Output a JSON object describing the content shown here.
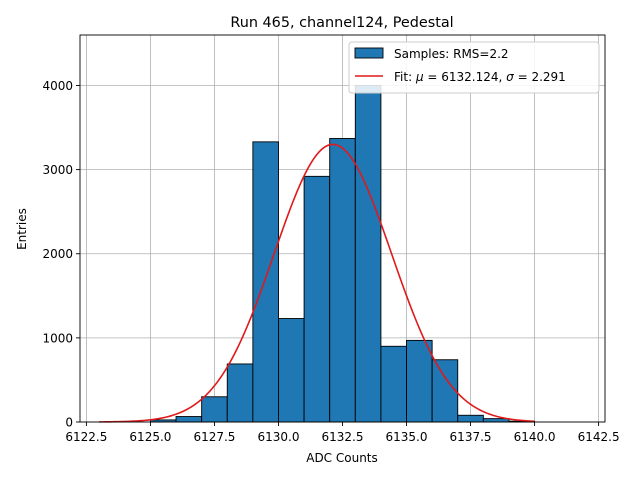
{
  "chart_data": {
    "type": "bar",
    "title": "Run 465, channel124, Pedestal",
    "xlabel": "ADC Counts",
    "ylabel": "Entries",
    "xlim": [
      6122.25,
      6142.75
    ],
    "ylim": [
      0,
      4600
    ],
    "grid": true,
    "legend_position": "top-right",
    "x_ticks": [
      6122.5,
      6125.0,
      6127.5,
      6130.0,
      6132.5,
      6135.0,
      6137.5,
      6140.0,
      6142.5
    ],
    "x_tick_labels": [
      "6122.5",
      "6125.0",
      "6127.5",
      "6130.0",
      "6132.5",
      "6135.0",
      "6137.5",
      "6140.0",
      "6142.5"
    ],
    "y_ticks": [
      0,
      1000,
      2000,
      3000,
      4000
    ],
    "y_tick_labels": [
      "0",
      "1000",
      "2000",
      "3000",
      "4000"
    ],
    "bins": {
      "edges": [
        6125,
        6126,
        6127,
        6128,
        6129,
        6130,
        6131,
        6132,
        6133,
        6134,
        6135,
        6136,
        6137,
        6138,
        6139,
        6140
      ],
      "counts": [
        25,
        65,
        300,
        690,
        3330,
        1230,
        2920,
        3370,
        4000,
        900,
        970,
        740,
        80,
        40,
        10
      ]
    },
    "fit": {
      "mu": 6132.124,
      "sigma": 2.291,
      "amplitude": 3300,
      "x_range": [
        6123,
        6140
      ]
    },
    "series": [
      {
        "name": "Samples: RMS=2.2",
        "kind": "histogram",
        "color": "#1f77b4",
        "edge_color": "#000000"
      },
      {
        "name": "Fit: μ = 6132.124, σ = 2.291",
        "kind": "line",
        "color": "#e0191c",
        "label_parts": [
          "Fit: ",
          "μ",
          " = 6132.124, ",
          "σ",
          " = 2.291"
        ]
      }
    ]
  }
}
